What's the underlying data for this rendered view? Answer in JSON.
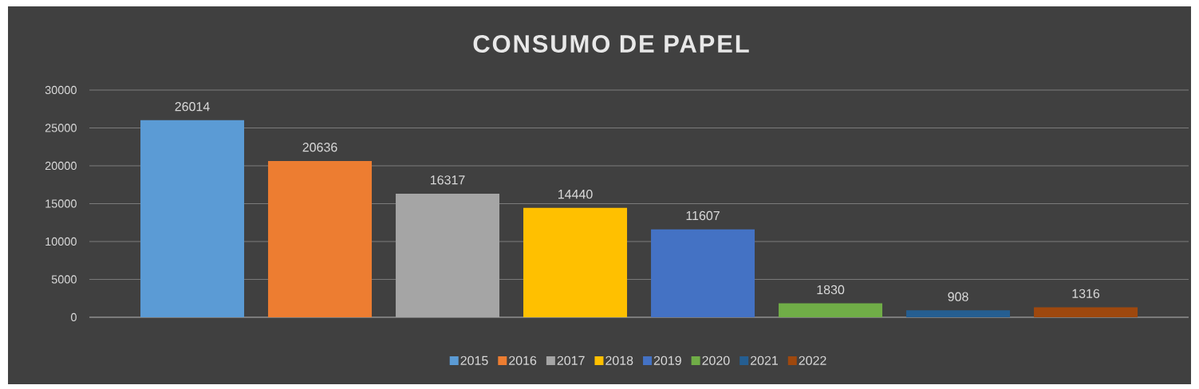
{
  "chart_data": {
    "type": "bar",
    "title": "CONSUMO DE PAPEL",
    "categories": [
      null
    ],
    "series": [
      {
        "name": "2015",
        "color": "#5b9bd5",
        "values": [
          26014
        ]
      },
      {
        "name": "2016",
        "color": "#ed7d31",
        "values": [
          20636
        ]
      },
      {
        "name": "2017",
        "color": "#a5a5a5",
        "values": [
          16317
        ]
      },
      {
        "name": "2018",
        "color": "#ffc000",
        "values": [
          14440
        ]
      },
      {
        "name": "2019",
        "color": "#4472c4",
        "values": [
          11607
        ]
      },
      {
        "name": "2020",
        "color": "#70ad47",
        "values": [
          1830
        ]
      },
      {
        "name": "2021",
        "color": "#255e91",
        "values": [
          908
        ]
      },
      {
        "name": "2022",
        "color": "#9e480e",
        "values": [
          1316
        ]
      }
    ],
    "ylim": [
      0,
      30000
    ],
    "yticks": [
      0,
      5000,
      10000,
      15000,
      20000,
      25000,
      30000
    ],
    "grid": "y",
    "legend": "bottom",
    "data_labels": true
  }
}
